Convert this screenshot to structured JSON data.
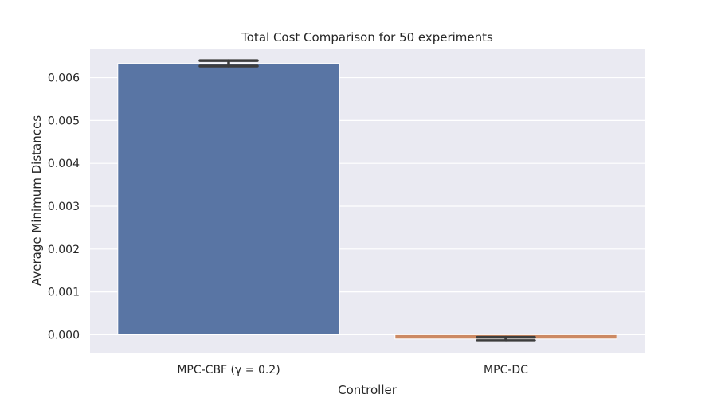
{
  "chart_data": {
    "type": "bar",
    "title": "Total Cost Comparison for 50 experiments",
    "xlabel": "Controller",
    "ylabel": "Average Minimum Distances",
    "categories": [
      "MPC-CBF (γ = 0.2)",
      "MPC-DC"
    ],
    "values": [
      0.00633,
      -0.0001
    ],
    "error_low": [
      0.00627,
      -0.00014
    ],
    "error_high": [
      0.0064,
      -6e-05
    ],
    "ylim": [
      -0.00042,
      0.00668
    ],
    "yticks": [
      "0.000",
      "0.001",
      "0.002",
      "0.003",
      "0.004",
      "0.005",
      "0.006"
    ],
    "ytick_values": [
      0,
      0.001,
      0.002,
      0.003,
      0.004,
      0.005,
      0.006
    ],
    "grid": true,
    "colors": [
      "#5975a4",
      "#cc8963"
    ],
    "background": "#eaeaf2",
    "gridcolor": "#ffffff",
    "errorcolor": "#3d3d3d"
  }
}
